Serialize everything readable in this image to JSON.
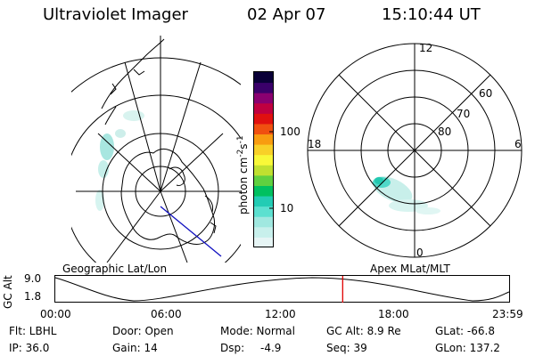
{
  "header": {
    "instrument": "Ultraviolet Imager",
    "date": "02 Apr 07",
    "time": "15:10:44 UT"
  },
  "colorbar": {
    "label": "photon cm",
    "label_exponent": "-2",
    "label_unit": "s",
    "label_unit_exponent": "-1",
    "tick_100": "100",
    "tick_10": "10",
    "colors": [
      "#e6f5f5",
      "#c8f0ec",
      "#a0e8e0",
      "#5ce0d0",
      "#22ccb4",
      "#00c060",
      "#60d040",
      "#c0e030",
      "#f8f838",
      "#f8d028",
      "#f89c10",
      "#f05010",
      "#e01010",
      "#c00040",
      "#8a0070",
      "#3a006a",
      "#0a0038"
    ]
  },
  "left_map": {
    "title": "Geographic Lat/Lon"
  },
  "right_map": {
    "title": "Apex MLat/MLT",
    "mlt_12": "12",
    "mlt_18": "18",
    "mlt_6": "6",
    "mlt_0": "0",
    "lat_60": "60",
    "lat_70": "70",
    "lat_80": "80"
  },
  "altitude_plot": {
    "ylabel": "GC Alt",
    "ytick_top": "9.0",
    "ytick_bottom": "1.8",
    "xticks": [
      "00:00",
      "06:00",
      "12:00",
      "18:00",
      "23:59"
    ],
    "current_time_marker_fraction": 0.632,
    "marker_color": "#e00000"
  },
  "info": {
    "filter": "Flt: LBHL",
    "ip": "IP: 36.0",
    "door": "Door: Open",
    "gain": "Gain: 14",
    "mode": "Mode: Normal",
    "dsp_label": "Dsp:",
    "dsp_value": "-4.9",
    "gc_alt": "GC Alt: 8.9 Re",
    "seq": "Seq: 39",
    "glat": "GLat: -66.8",
    "glon": "GLon: 137.2"
  }
}
